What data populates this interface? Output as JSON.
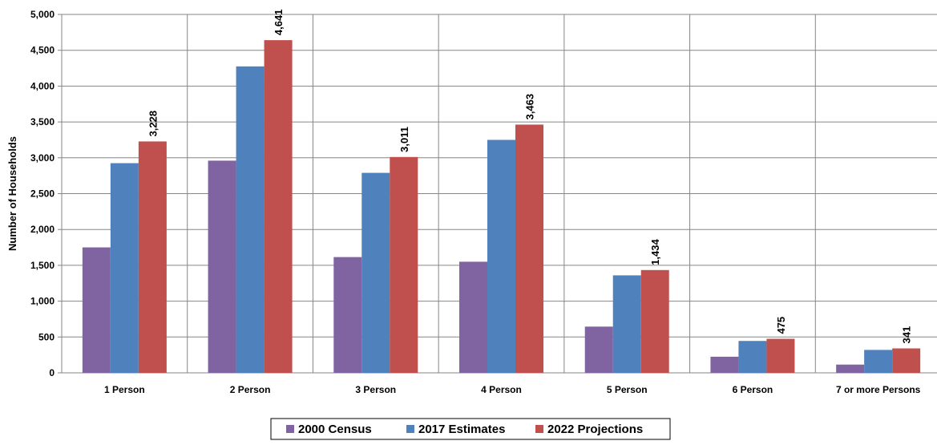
{
  "chart_data": {
    "type": "bar",
    "title": "",
    "xlabel": "",
    "ylabel": "Number of Households",
    "ylim": [
      0,
      5000
    ],
    "ytick_step": 500,
    "grid": true,
    "legend_position": "bottom",
    "categories": [
      "1 Person",
      "2 Person",
      "3 Person",
      "4 Person",
      "5 Person",
      "6 Person",
      "7 or more Persons"
    ],
    "series": [
      {
        "name": "2000 Census",
        "color": "#8064a2",
        "values": [
          1750,
          2960,
          1615,
          1550,
          645,
          225,
          115
        ],
        "show_labels": false
      },
      {
        "name": "2017 Estimates",
        "color": "#4f81bd",
        "values": [
          2925,
          4275,
          2790,
          3250,
          1360,
          445,
          320
        ],
        "show_labels": false
      },
      {
        "name": "2022 Projections",
        "color": "#c0504d",
        "values": [
          3228,
          4641,
          3011,
          3463,
          1434,
          475,
          341
        ],
        "show_labels": true
      }
    ]
  }
}
